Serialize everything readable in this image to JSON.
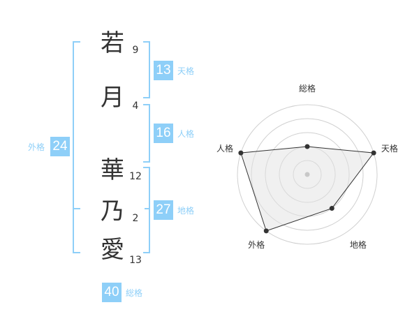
{
  "name_chars": [
    {
      "char": "若",
      "strokes": "9"
    },
    {
      "char": "月",
      "strokes": "4"
    },
    {
      "char": "華",
      "strokes": "12"
    },
    {
      "char": "乃",
      "strokes": "2"
    },
    {
      "char": "愛",
      "strokes": "13"
    }
  ],
  "kaku": {
    "tenkaku": {
      "label": "天格",
      "value": "13"
    },
    "jinkaku": {
      "label": "人格",
      "value": "16"
    },
    "chikaku": {
      "label": "地格",
      "value": "27"
    },
    "gaikaku": {
      "label": "外格",
      "value": "24"
    },
    "soukaku": {
      "label": "総格",
      "value": "40"
    }
  },
  "colors": {
    "accent": "#8ecff8",
    "text": "#333333",
    "radar_fill": "#f2f2f2"
  },
  "chart_data": {
    "type": "radar",
    "axes": [
      "総格",
      "天格",
      "地格",
      "外格",
      "人格"
    ],
    "values": [
      2,
      5,
      3,
      5,
      5
    ],
    "range": [
      0,
      5
    ],
    "rings": 5
  }
}
